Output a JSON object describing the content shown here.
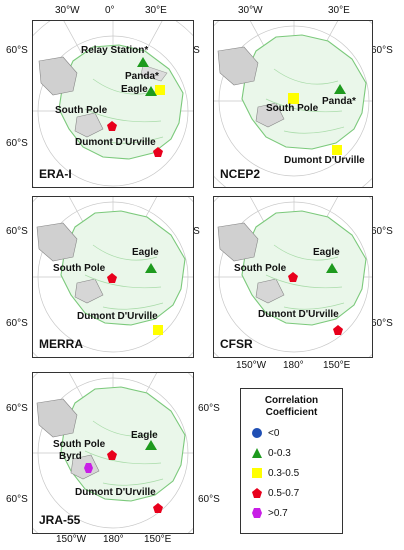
{
  "axis_labels": {
    "lon_30w": "30°W",
    "lon_0": "0°",
    "lon_30e": "30°E",
    "lat_60s": "60°S",
    "lon_150w": "150°W",
    "lon_180": "180°",
    "lon_150e": "150°E"
  },
  "panels": [
    {
      "id": "era-i",
      "label": "ERA-I",
      "sites": [
        {
          "name": "Relay Station",
          "suffix": "*",
          "range": "0-0.3"
        },
        {
          "name": "Panda",
          "suffix": "*",
          "range": "0.3-0.5"
        },
        {
          "name": "Eagle",
          "suffix": "",
          "range": "0-0.3"
        },
        {
          "name": "South Pole",
          "suffix": "",
          "range": "0.5-0.7"
        },
        {
          "name": "Dumont D'Urville",
          "suffix": "",
          "range": "0.5-0.7"
        }
      ]
    },
    {
      "id": "ncep2",
      "label": "NCEP2",
      "sites": [
        {
          "name": "South Pole",
          "suffix": "",
          "range": "0.3-0.5"
        },
        {
          "name": "Panda",
          "suffix": "*",
          "range": "0-0.3"
        },
        {
          "name": "Dumont D'Urville",
          "suffix": "",
          "range": "0.3-0.5"
        }
      ]
    },
    {
      "id": "merra",
      "label": "MERRA",
      "sites": [
        {
          "name": "Eagle",
          "suffix": "",
          "range": "0-0.3"
        },
        {
          "name": "South Pole",
          "suffix": "",
          "range": "0.5-0.7"
        },
        {
          "name": "Dumont D'Urville",
          "suffix": "",
          "range": "0.3-0.5"
        }
      ]
    },
    {
      "id": "cfsr",
      "label": "CFSR",
      "sites": [
        {
          "name": "Eagle",
          "suffix": "",
          "range": "0-0.3"
        },
        {
          "name": "South Pole",
          "suffix": "",
          "range": "0.5-0.7"
        },
        {
          "name": "Dumont D'Urville",
          "suffix": "",
          "range": "0.5-0.7"
        }
      ]
    },
    {
      "id": "jra-55",
      "label": "JRA-55",
      "sites": [
        {
          "name": "Eagle",
          "suffix": "",
          "range": "0-0.3"
        },
        {
          "name": "South Pole",
          "suffix": "",
          "range": "0.5-0.7"
        },
        {
          "name": "Byrd",
          "suffix": "",
          "range": ">0.7"
        },
        {
          "name": "Dumont D'Urville",
          "suffix": "",
          "range": "0.5-0.7"
        }
      ]
    }
  ],
  "legend": {
    "title_line1": "Correlation",
    "title_line2": "Coefficient",
    "items": [
      {
        "range": "<0",
        "symbol": "circle",
        "color": "#1f4fb4"
      },
      {
        "range": "0-0.3",
        "symbol": "triangle",
        "color": "#1e9a1e"
      },
      {
        "range": "0.3-0.5",
        "symbol": "square",
        "color": "#ffff00"
      },
      {
        "range": "0.5-0.7",
        "symbol": "pentagon",
        "color": "#e8001c"
      },
      {
        "range": ">0.7",
        "symbol": "hexagon",
        "color": "#c81ee6"
      }
    ]
  }
}
